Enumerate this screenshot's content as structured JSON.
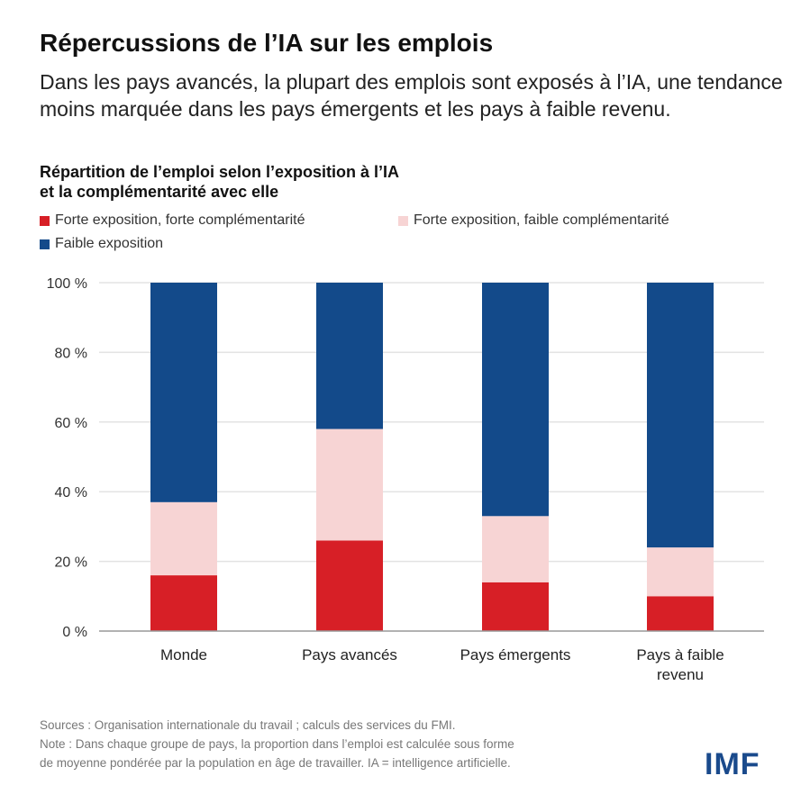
{
  "title": "Répercussions de l’IA sur les emplois",
  "subtitle": "Dans les pays avancés, la plupart des emplois sont exposés à l’IA, une tendance moins marquée dans les pays émergents et les pays à faible revenu.",
  "chart_title_line1": "Répartition de l’emploi selon l’exposition à l’IA",
  "chart_title_line2": "et la complémentarité avec elle",
  "sources": "Sources : Organisation internationale du travail ; calculs des services du FMI.",
  "note_line1": "Note : Dans chaque groupe de pays, la proportion dans l’emploi est calculée sous forme",
  "note_line2": "de moyenne pondérée par la population en âge de travailler. IA = intelligence artificielle.",
  "logo": "IMF",
  "chart_data": {
    "type": "bar",
    "stacked": true,
    "categories": [
      "Monde",
      "Pays avancés",
      "Pays émergents",
      "Pays à faible revenu"
    ],
    "category_lines": [
      [
        "Monde"
      ],
      [
        "Pays avancés"
      ],
      [
        "Pays émergents"
      ],
      [
        "Pays à faible",
        "revenu"
      ]
    ],
    "series": [
      {
        "name": "Forte exposition, forte complémentarité",
        "color": "#d71f26",
        "values": [
          16,
          26,
          14,
          10
        ]
      },
      {
        "name": "Forte exposition, faible complémentarité",
        "color": "#f7d4d4",
        "values": [
          21,
          32,
          19,
          14
        ]
      },
      {
        "name": "Faible exposition",
        "color": "#134a8a",
        "values": [
          63,
          42,
          67,
          76
        ]
      }
    ],
    "ylim": [
      0,
      100
    ],
    "yticks": [
      "0 %",
      "20 %",
      "40 %",
      "60 %",
      "80 %",
      "100 %"
    ],
    "grid": true,
    "legend": "top-left"
  }
}
